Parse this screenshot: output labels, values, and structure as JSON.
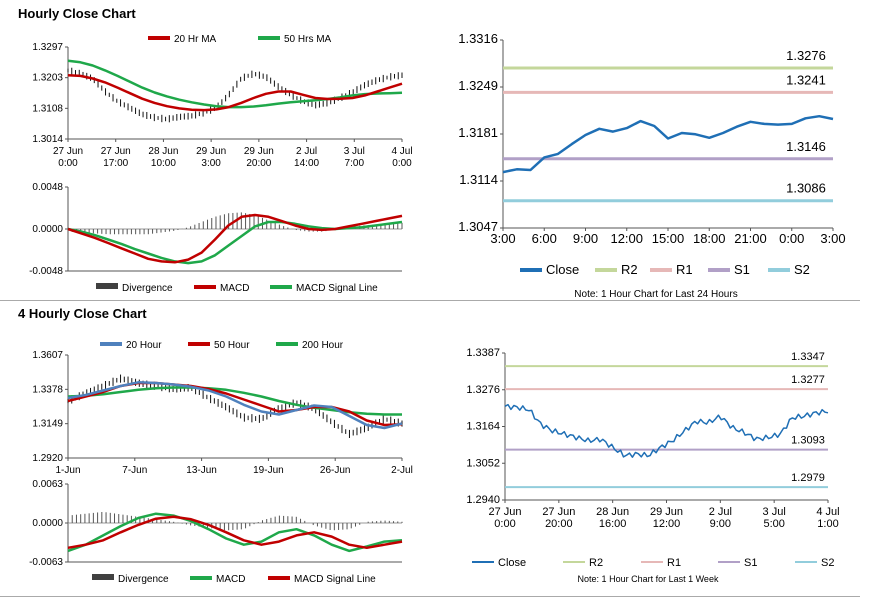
{
  "sections": [
    {
      "title": "Hourly Close Chart"
    },
    {
      "title": "4 Hourly Close Chart"
    }
  ],
  "colors": {
    "red": "#c00000",
    "green": "#1fa84a",
    "blue": "#4f81bd",
    "close": "#1f6fb5",
    "r2": "#c4d79b",
    "r1": "#e6b8b7",
    "s1": "#b1a0c7",
    "s2": "#92cddc",
    "bar": "#404040"
  },
  "chart_data": [
    {
      "id": "hourly-price",
      "type": "line",
      "legend": [
        "20 Hr MA",
        "50 Hrs MA"
      ],
      "y_ticks": [
        "1.3297",
        "1.3203",
        "1.3108",
        "1.3014"
      ],
      "ylim": [
        1.3014,
        1.3297
      ],
      "x_ticks": [
        [
          "27 Jun",
          "0:00"
        ],
        [
          "27 Jun",
          "17:00"
        ],
        [
          "28 Jun",
          "10:00"
        ],
        [
          "29 Jun",
          "3:00"
        ],
        [
          "29 Jun",
          "20:00"
        ],
        [
          "2 Jul",
          "14:00"
        ],
        [
          "3 Jul",
          "7:00"
        ],
        [
          "4 Jul",
          "0:00"
        ]
      ],
      "series": [
        {
          "name": "20 Hr MA",
          "values": [
            1.321,
            1.3208,
            1.32,
            1.3188,
            1.3172,
            1.3155,
            1.3138,
            1.3125,
            1.3115,
            1.3108,
            1.3104,
            1.3103,
            1.3105,
            1.3112,
            1.3125,
            1.314,
            1.3153,
            1.316,
            1.316,
            1.315,
            1.314,
            1.3137,
            1.3138,
            1.314,
            1.3148,
            1.316,
            1.3172,
            1.3184
          ]
        },
        {
          "name": "50 Hrs MA",
          "values": [
            1.3255,
            1.325,
            1.324,
            1.3225,
            1.3208,
            1.319,
            1.3172,
            1.3157,
            1.3145,
            1.3135,
            1.3127,
            1.312,
            1.3115,
            1.3112,
            1.3112,
            1.3114,
            1.3118,
            1.3123,
            1.3127,
            1.313,
            1.3133,
            1.3137,
            1.3142,
            1.3148,
            1.3152,
            1.3154,
            1.3155,
            1.3156
          ]
        },
        {
          "name": "price",
          "values": [
            1.3225,
            1.3215,
            1.32,
            1.316,
            1.313,
            1.311,
            1.309,
            1.308,
            1.3075,
            1.3082,
            1.3085,
            1.3095,
            1.311,
            1.315,
            1.32,
            1.3215,
            1.3205,
            1.3175,
            1.315,
            1.313,
            1.3118,
            1.3125,
            1.314,
            1.3158,
            1.318,
            1.3195,
            1.3205,
            1.321
          ]
        }
      ]
    },
    {
      "id": "hourly-macd",
      "type": "line",
      "legend": [
        "Divergence",
        "MACD",
        "MACD Signal Line"
      ],
      "y_ticks": [
        "0.0048",
        "0.0000",
        "-0.0048"
      ],
      "ylim": [
        -0.0048,
        0.0048
      ],
      "series": [
        {
          "name": "MACD",
          "values": [
            0.0,
            -0.0005,
            -0.001,
            -0.0016,
            -0.0022,
            -0.0028,
            -0.0034,
            -0.0037,
            -0.0038,
            -0.0035,
            -0.0027,
            -0.0012,
            0.0004,
            0.0014,
            0.0016,
            0.0014,
            0.0009,
            0.0004,
            0.0,
            -0.0001,
            0.0,
            0.0003,
            0.0006,
            0.0009,
            0.0012,
            0.0015
          ]
        },
        {
          "name": "MACD Signal Line",
          "values": [
            0.0,
            -0.0003,
            -0.0007,
            -0.0012,
            -0.0017,
            -0.0023,
            -0.0028,
            -0.0033,
            -0.0037,
            -0.0039,
            -0.0037,
            -0.003,
            -0.0019,
            -0.0008,
            0.0003,
            0.0008,
            0.0008,
            0.0006,
            0.0003,
            0.0001,
            0.0,
            0.0001,
            0.0002,
            0.0004,
            0.0006,
            0.0008
          ]
        },
        {
          "name": "Divergence",
          "values": [
            -0.0003,
            -0.0004,
            -0.0005,
            -0.0006,
            -0.0006,
            -0.0006,
            -0.0006,
            -0.0004,
            -0.0002,
            0.0002,
            0.0008,
            0.0014,
            0.0018,
            0.0019,
            0.0016,
            0.001,
            0.0004,
            -0.0001,
            -0.0003,
            -0.0003,
            -0.0001,
            0.0002,
            0.0004,
            0.0005,
            0.0006,
            0.0007
          ]
        }
      ]
    },
    {
      "id": "hourly-24h",
      "type": "line",
      "y_ticks": [
        "1.3316",
        "1.3249",
        "1.3181",
        "1.3114",
        "1.3047"
      ],
      "ylim": [
        1.3047,
        1.3316
      ],
      "x_ticks": [
        "3:00",
        "6:00",
        "9:00",
        "12:00",
        "15:00",
        "18:00",
        "21:00",
        "0:00",
        "3:00"
      ],
      "legend": [
        "Close",
        "R2",
        "R1",
        "S1",
        "S2"
      ],
      "levels": [
        {
          "name": "R2",
          "value": 1.3276,
          "label": "1.3276"
        },
        {
          "name": "R1",
          "value": 1.3241,
          "label": "1.3241"
        },
        {
          "name": "S1",
          "value": 1.3146,
          "label": "1.3146"
        },
        {
          "name": "S2",
          "value": 1.3086,
          "label": "1.3086"
        }
      ],
      "close": [
        1.3127,
        1.3131,
        1.313,
        1.3148,
        1.3153,
        1.3167,
        1.318,
        1.3189,
        1.3185,
        1.319,
        1.32,
        1.3193,
        1.3175,
        1.3183,
        1.3181,
        1.3176,
        1.3183,
        1.3192,
        1.3199,
        1.3196,
        1.3195,
        1.3196,
        1.3204,
        1.3207,
        1.3203
      ],
      "note": "Note: 1 Hour Chart for Last 24 Hours"
    },
    {
      "id": "4h-price",
      "type": "line",
      "legend": [
        "20 Hour",
        "50 Hour",
        "200 Hour"
      ],
      "y_ticks": [
        "1.3607",
        "1.3378",
        "1.3149",
        "1.2920"
      ],
      "ylim": [
        1.292,
        1.3607
      ],
      "x_ticks": [
        "1-Jun",
        "7-Jun",
        "13-Jun",
        "19-Jun",
        "26-Jun",
        "2-Jul"
      ],
      "series": [
        {
          "name": "20 Hour",
          "values": [
            1.332,
            1.334,
            1.337,
            1.34,
            1.3425,
            1.342,
            1.341,
            1.3395,
            1.337,
            1.333,
            1.3275,
            1.323,
            1.321,
            1.324,
            1.327,
            1.326,
            1.32,
            1.314,
            1.312,
            1.315
          ]
        },
        {
          "name": "50 Hour",
          "values": [
            1.33,
            1.333,
            1.336,
            1.34,
            1.342,
            1.342,
            1.341,
            1.34,
            1.338,
            1.335,
            1.331,
            1.327,
            1.323,
            1.324,
            1.326,
            1.326,
            1.323,
            1.317,
            1.314,
            1.3145
          ]
        },
        {
          "name": "200 Hour",
          "values": [
            1.333,
            1.3335,
            1.3345,
            1.336,
            1.3375,
            1.3385,
            1.339,
            1.339,
            1.3385,
            1.3375,
            1.3355,
            1.333,
            1.33,
            1.3275,
            1.3255,
            1.324,
            1.3225,
            1.3215,
            1.321,
            1.321
          ]
        },
        {
          "name": "price",
          "values": [
            1.33,
            1.335,
            1.34,
            1.345,
            1.342,
            1.34,
            1.338,
            1.339,
            1.332,
            1.326,
            1.319,
            1.318,
            1.325,
            1.329,
            1.325,
            1.316,
            1.308,
            1.312,
            1.318,
            1.315
          ]
        }
      ]
    },
    {
      "id": "4h-macd",
      "type": "line",
      "legend": [
        "Divergence",
        "MACD",
        "MACD Signal Line"
      ],
      "y_ticks": [
        "0.0063",
        "0.0000",
        "-0.0063"
      ],
      "ylim": [
        -0.0063,
        0.0063
      ],
      "series": [
        {
          "name": "MACD",
          "values": [
            -0.0045,
            -0.0035,
            -0.002,
            -0.0005,
            0.0008,
            0.0015,
            0.0012,
            0.0003,
            -0.001,
            -0.0025,
            -0.0035,
            -0.003,
            -0.0015,
            -0.001,
            -0.002,
            -0.0035,
            -0.0045,
            -0.0038,
            -0.003,
            -0.0028
          ]
        },
        {
          "name": "MACD Signal Line",
          "values": [
            -0.004,
            -0.0035,
            -0.0028,
            -0.0015,
            -0.0003,
            0.0007,
            0.001,
            0.0006,
            -0.0003,
            -0.0015,
            -0.0028,
            -0.0035,
            -0.003,
            -0.002,
            -0.0015,
            -0.0022,
            -0.0035,
            -0.004,
            -0.0035,
            -0.003
          ]
        },
        {
          "name": "Divergence",
          "values": [
            0.0012,
            0.0015,
            0.0018,
            0.0014,
            0.001,
            0.0006,
            0.0002,
            -0.0004,
            -0.0008,
            -0.0012,
            -0.001,
            0.0004,
            0.0012,
            0.001,
            -0.0004,
            -0.0012,
            -0.001,
            0.0002,
            0.0004,
            0.0002
          ]
        }
      ]
    },
    {
      "id": "4h-week",
      "type": "line",
      "y_ticks": [
        "1.3387",
        "1.3276",
        "1.3164",
        "1.3052",
        "1.2940"
      ],
      "ylim": [
        1.294,
        1.3387
      ],
      "x_ticks": [
        [
          "27 Jun",
          "0:00"
        ],
        [
          "27 Jun",
          "20:00"
        ],
        [
          "28 Jun",
          "16:00"
        ],
        [
          "29 Jun",
          "12:00"
        ],
        [
          "2 Jul",
          "9:00"
        ],
        [
          "3 Jul",
          "5:00"
        ],
        [
          "4 Jul",
          "1:00"
        ]
      ],
      "legend": [
        "Close",
        "R2",
        "R1",
        "S1",
        "S2"
      ],
      "levels": [
        {
          "name": "R2",
          "value": 1.3347,
          "label": "1.3347"
        },
        {
          "name": "R1",
          "value": 1.3277,
          "label": "1.3277"
        },
        {
          "name": "S1",
          "value": 1.3093,
          "label": "1.3093"
        },
        {
          "name": "S2",
          "value": 1.2979,
          "label": "1.2979"
        }
      ],
      "close": [
        1.3225,
        1.3222,
        1.3215,
        1.317,
        1.315,
        1.314,
        1.313,
        1.312,
        1.3125,
        1.31,
        1.3075,
        1.308,
        1.3075,
        1.31,
        1.312,
        1.315,
        1.318,
        1.3175,
        1.3195,
        1.316,
        1.3145,
        1.3125,
        1.313,
        1.314,
        1.319,
        1.3195,
        1.3205,
        1.321
      ],
      "note": "Note: 1 Hour Chart for Last 1 Week"
    }
  ]
}
